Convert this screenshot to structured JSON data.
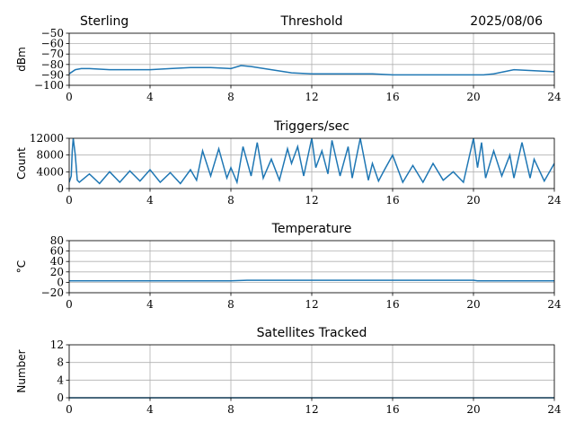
{
  "header": {
    "station": "Sterling",
    "date": "2025/08/06"
  },
  "style": {
    "line_color": "#1f77b4"
  },
  "chart_data": [
    {
      "type": "line",
      "title": "Threshold",
      "ylabel": "dBm",
      "xlim": [
        0,
        24
      ],
      "ylim": [
        -100,
        -50
      ],
      "xticks": [
        0,
        4,
        8,
        12,
        16,
        20,
        24
      ],
      "xtick_labels": [
        "0",
        "4",
        "8",
        "12",
        "16",
        "20",
        "24"
      ],
      "yticks": [
        -100,
        -90,
        -80,
        -70,
        -60,
        -50
      ],
      "ytick_labels": [
        "−100",
        "−90",
        "−80",
        "−70",
        "−60",
        "−50"
      ],
      "grid": true,
      "series": [
        {
          "x": [
            0,
            0.3,
            0.6,
            1,
            2,
            3,
            4,
            5,
            6,
            7,
            8,
            8.5,
            9,
            10,
            11,
            12,
            13,
            14,
            15,
            16,
            17,
            18,
            19,
            20,
            20.5,
            21,
            22,
            23,
            24
          ],
          "y": [
            -89,
            -85,
            -84,
            -84,
            -85,
            -85,
            -85,
            -84,
            -83,
            -83,
            -84,
            -81,
            -82,
            -85,
            -88,
            -89,
            -89,
            -89,
            -89,
            -90,
            -90,
            -90,
            -90,
            -90,
            -90,
            -89,
            -85,
            -86,
            -87
          ]
        }
      ]
    },
    {
      "type": "line",
      "title": "Triggers/sec",
      "ylabel": "Count",
      "xlim": [
        0,
        24
      ],
      "ylim": [
        0,
        12000
      ],
      "xticks": [
        0,
        4,
        8,
        12,
        16,
        20,
        24
      ],
      "xtick_labels": [
        "0",
        "4",
        "8",
        "12",
        "16",
        "20",
        "24"
      ],
      "yticks": [
        0,
        4000,
        8000,
        12000
      ],
      "ytick_labels": [
        "0",
        "4000",
        "8000",
        "12000"
      ],
      "grid": true,
      "series": [
        {
          "x": [
            0,
            0.1,
            0.15,
            0.2,
            0.3,
            0.4,
            0.5,
            1,
            1.5,
            2,
            2.5,
            3,
            3.5,
            4,
            4.5,
            5,
            5.5,
            6,
            6.3,
            6.6,
            7,
            7.4,
            7.8,
            8,
            8.3,
            8.6,
            9,
            9.3,
            9.6,
            10,
            10.4,
            10.8,
            11,
            11.3,
            11.6,
            12,
            12.2,
            12.5,
            12.8,
            13,
            13.4,
            13.8,
            14,
            14.4,
            14.8,
            15,
            15.3,
            15.6,
            16,
            16.5,
            17,
            17.5,
            18,
            18.5,
            19,
            19.5,
            20,
            20.2,
            20.4,
            20.6,
            21,
            21.4,
            21.8,
            22,
            22.4,
            22.8,
            23,
            23.5,
            24
          ],
          "y": [
            1500,
            3000,
            9000,
            12000,
            8000,
            2000,
            1500,
            3500,
            1200,
            4000,
            1500,
            4200,
            1800,
            4500,
            1500,
            3800,
            1200,
            4500,
            2000,
            9000,
            3000,
            9500,
            2500,
            5000,
            1500,
            10000,
            3000,
            11000,
            2500,
            7000,
            2000,
            9500,
            6000,
            10000,
            3000,
            12000,
            5000,
            9000,
            3500,
            11500,
            3000,
            10000,
            2500,
            12000,
            2000,
            6000,
            1800,
            4500,
            8000,
            1500,
            5500,
            1500,
            6000,
            2000,
            4000,
            1500,
            12000,
            5000,
            11000,
            2500,
            9000,
            3000,
            8000,
            2500,
            11000,
            2500,
            7000,
            1800,
            6000
          ]
        }
      ]
    },
    {
      "type": "line",
      "title": "Temperature",
      "ylabel": "°C",
      "xlim": [
        0,
        24
      ],
      "ylim": [
        -20,
        80
      ],
      "xticks": [
        0,
        4,
        8,
        12,
        16,
        20,
        24
      ],
      "xtick_labels": [
        "0",
        "4",
        "8",
        "12",
        "16",
        "20",
        "24"
      ],
      "yticks": [
        -20,
        0,
        20,
        40,
        60,
        80
      ],
      "ytick_labels": [
        "−20",
        "0",
        "20",
        "40",
        "60",
        "80"
      ],
      "grid": true,
      "series": [
        {
          "x": [
            0,
            4,
            8,
            8.8,
            9.5,
            12,
            16,
            20,
            20.2,
            24
          ],
          "y": [
            3,
            3,
            3,
            4,
            4,
            4,
            4,
            4,
            3,
            3
          ]
        }
      ]
    },
    {
      "type": "line",
      "title": "Satellites Tracked",
      "ylabel": "Number",
      "xlim": [
        0,
        24
      ],
      "ylim": [
        0,
        12
      ],
      "xticks": [
        0,
        4,
        8,
        12,
        16,
        20,
        24
      ],
      "xtick_labels": [
        "0",
        "4",
        "8",
        "12",
        "16",
        "20",
        "24"
      ],
      "yticks": [
        0,
        4,
        8,
        12
      ],
      "ytick_labels": [
        "0",
        "4",
        "8",
        "12"
      ],
      "grid": true,
      "series": [
        {
          "x": [
            0,
            24
          ],
          "y": [
            0,
            0
          ]
        }
      ]
    }
  ]
}
